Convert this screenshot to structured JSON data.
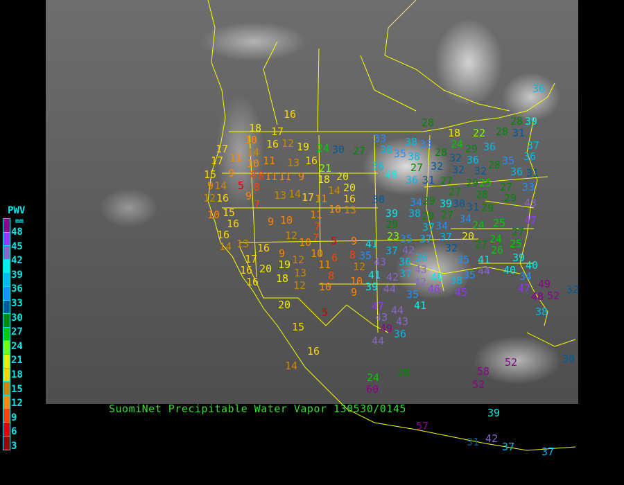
{
  "title": "SuomiNet Precipitable Water Vapor 130530/0145",
  "legend": {
    "title": "PWV",
    "unit": "mm",
    "labels": [
      "48",
      "45",
      "42",
      "39",
      "36",
      "33",
      "30",
      "27",
      "24",
      "21",
      "18",
      "15",
      "12",
      "9",
      "6",
      "3"
    ],
    "colors": [
      "#8b008b",
      "#9933ff",
      "#8866cc",
      "#00eeee",
      "#00bbee",
      "#1e90ff",
      "#005a9a",
      "#008800",
      "#00cc00",
      "#77ff00",
      "#eeee00",
      "#ffd700",
      "#cc8800",
      "#ff8800",
      "#ff4400",
      "#dd0000",
      "#990000"
    ]
  },
  "border_color": "#ffff00",
  "stations": [
    "16",
    "18",
    "17",
    "10",
    "16",
    "12",
    "19",
    "24",
    "30",
    "27",
    "17",
    "14",
    "11",
    "10",
    "11",
    "13",
    "16",
    "21",
    "17",
    "8",
    "8",
    "11",
    "11",
    "9",
    "18",
    "20",
    "15",
    "9",
    "14",
    "5",
    "8",
    "14",
    "20",
    "9",
    "12",
    "16",
    "9",
    "7",
    "13",
    "14",
    "17",
    "11",
    "16",
    "10",
    "13",
    "10",
    "15",
    "16",
    "11",
    "9",
    "10",
    "7",
    "16",
    "12",
    "7",
    "10",
    "5",
    "9",
    "14",
    "13",
    "16",
    "9",
    "10",
    "6",
    "8",
    "17",
    "19",
    "12",
    "11",
    "12",
    "16",
    "20",
    "18",
    "13",
    "8",
    "10",
    "16",
    "12",
    "10",
    "9",
    "20",
    "15",
    "16",
    "5",
    "14",
    "28",
    "28",
    "39",
    "31",
    "22",
    "18",
    "28",
    "33",
    "38",
    "38",
    "33",
    "35",
    "38",
    "28",
    "24",
    "29",
    "36",
    "36",
    "37",
    "36",
    "36",
    "27",
    "32",
    "32",
    "32",
    "32",
    "28",
    "35",
    "40",
    "36",
    "31",
    "27",
    "29",
    "36",
    "31",
    "27",
    "25",
    "33",
    "28",
    "27",
    "29",
    "30",
    "30",
    "31",
    "39",
    "34",
    "29",
    "27",
    "29",
    "43",
    "39",
    "38",
    "29",
    "29",
    "34",
    "34",
    "37",
    "37",
    "23",
    "24",
    "25",
    "47",
    "35",
    "37",
    "20",
    "27",
    "41",
    "42",
    "32",
    "27",
    "24",
    "26",
    "25",
    "35",
    "37",
    "43",
    "36",
    "36",
    "35",
    "41",
    "39",
    "40",
    "41",
    "37",
    "43",
    "44",
    "40",
    "34",
    "40",
    "35",
    "39",
    "44",
    "42",
    "42",
    "35",
    "46",
    "38",
    "45",
    "47",
    "49",
    "48",
    "52",
    "32",
    "41",
    "47",
    "43",
    "44",
    "43",
    "49",
    "38",
    "44",
    "36",
    "28",
    "24",
    "60",
    "58",
    "52",
    "52",
    "30",
    "57",
    "39",
    "31",
    "42",
    "37",
    "37",
    "36"
  ]
}
